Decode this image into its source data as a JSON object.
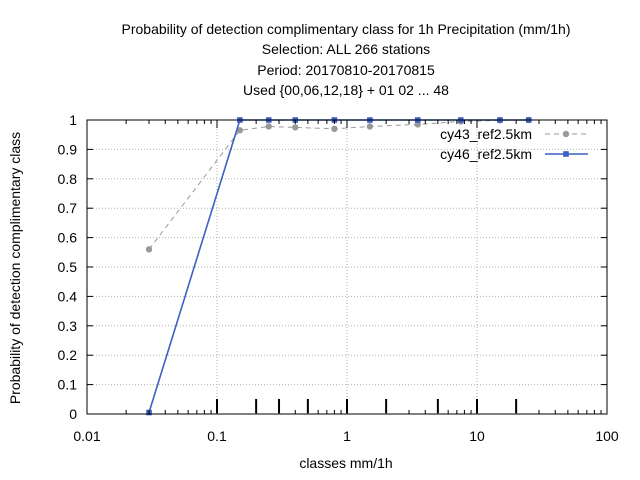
{
  "chart_data": {
    "type": "line",
    "title_lines": [
      "Probability of detection complimentary class  for 1h Precipitation (mm/1h)",
      "Selection: ALL    266 stations",
      "Period: 20170810-20170815",
      "Used {00,06,12,18} + 01 02 ... 48"
    ],
    "xlabel": "classes mm/1h",
    "ylabel": "Probability of detection complimentary class",
    "x_scale": "log",
    "xlim": [
      0.01,
      100
    ],
    "ylim": [
      0,
      1
    ],
    "x_ticks": [
      0.01,
      0.1,
      1,
      10,
      100
    ],
    "x_tick_labels": [
      "0.01",
      "0.1",
      "1",
      "10",
      "100"
    ],
    "y_ticks": [
      0,
      0.1,
      0.2,
      0.3,
      0.4,
      0.5,
      0.6,
      0.7,
      0.8,
      0.9,
      1
    ],
    "y_tick_labels": [
      "0",
      "0.1",
      "0.2",
      "0.3",
      "0.4",
      "0.5",
      "0.6",
      "0.7",
      "0.8",
      "0.9",
      "1"
    ],
    "grid": true,
    "legend_position": "top-right",
    "class_markers": [
      0.1,
      0.2,
      0.3,
      0.5,
      1,
      2,
      5,
      10,
      20
    ],
    "series": [
      {
        "name": "cy43_ref2.5km",
        "color": "#999999",
        "style": "dashed",
        "x": [
          0.03,
          0.15,
          0.25,
          0.4,
          0.8,
          1.5,
          3.5,
          7.5,
          15,
          25
        ],
        "y": [
          0.56,
          0.965,
          0.978,
          0.975,
          0.97,
          0.978,
          0.985,
          0.995,
          0.999,
          1.0
        ]
      },
      {
        "name": "cy46_ref2.5km",
        "color": "#3d5fc6",
        "style": "solid",
        "x": [
          0.03,
          0.15,
          0.25,
          0.4,
          0.8,
          1.5,
          3.5,
          7.5,
          15,
          25
        ],
        "y": [
          0.005,
          1.0,
          1.0,
          1.0,
          1.0,
          1.0,
          1.0,
          1.0,
          1.0,
          1.0
        ]
      }
    ]
  }
}
